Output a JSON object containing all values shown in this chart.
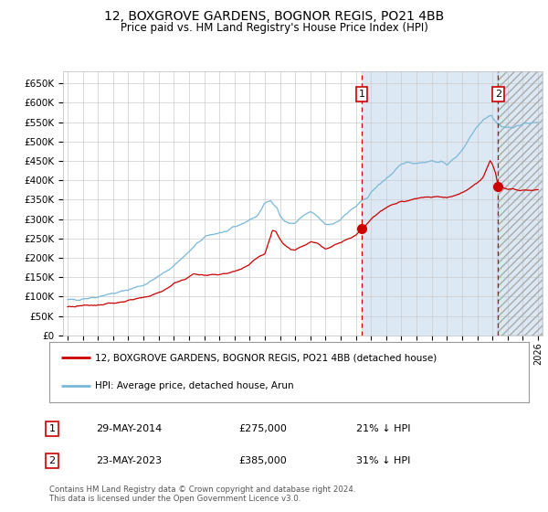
{
  "title": "12, BOXGROVE GARDENS, BOGNOR REGIS, PO21 4BB",
  "subtitle": "Price paid vs. HM Land Registry's House Price Index (HPI)",
  "legend_line1": "12, BOXGROVE GARDENS, BOGNOR REGIS, PO21 4BB (detached house)",
  "legend_line2": "HPI: Average price, detached house, Arun",
  "footnote": "Contains HM Land Registry data © Crown copyright and database right 2024.\nThis data is licensed under the Open Government Licence v3.0.",
  "transaction1_date": "29-MAY-2014",
  "transaction1_price": 275000,
  "transaction1_label": "21% ↓ HPI",
  "transaction2_date": "23-MAY-2023",
  "transaction2_price": 385000,
  "transaction2_label": "31% ↓ HPI",
  "hpi_color": "#7ab8d9",
  "price_color": "#cc0000",
  "point_color": "#cc0000",
  "vline_color": "#cc0000",
  "shading_color": "#dce9f5",
  "grid_color": "#cccccc",
  "bg_color": "#ffffff",
  "ylim_max": 680000,
  "xlim_start": 1994.7,
  "xlim_end": 2026.3,
  "t1_year": 2014.38,
  "t2_year": 2023.38
}
